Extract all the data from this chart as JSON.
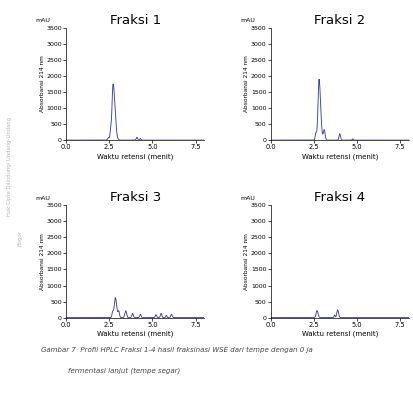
{
  "subplot_titles": [
    "Fraksi 1",
    "Fraksi 2",
    "Fraksi 3",
    "Fraksi 4"
  ],
  "xlabel": "Waktu retensi (menit)",
  "ylabel": "Absorbansi 214 nm",
  "ylabel_top": "mAU",
  "xlim": [
    0,
    8
  ],
  "xticks": [
    0,
    2.5,
    5,
    7.5
  ],
  "ylim": [
    0,
    3500
  ],
  "yticks": [
    0,
    500,
    1000,
    1500,
    2000,
    2500,
    3000,
    3500
  ],
  "line_color": "#4040a0",
  "bg_color": "#ffffff",
  "caption_line1": "Gambar 7  Profil HPLC Fraksi 1-4 hasil fraksinasi WSE dari tempe dengan 0 ja",
  "caption_line2": "            fermentasi lanjut (tempe segar)",
  "caption_color": "#444444",
  "left_text1": "Hak Cipta Dilindungi Undang-Undang",
  "left_text2": "Bogor"
}
